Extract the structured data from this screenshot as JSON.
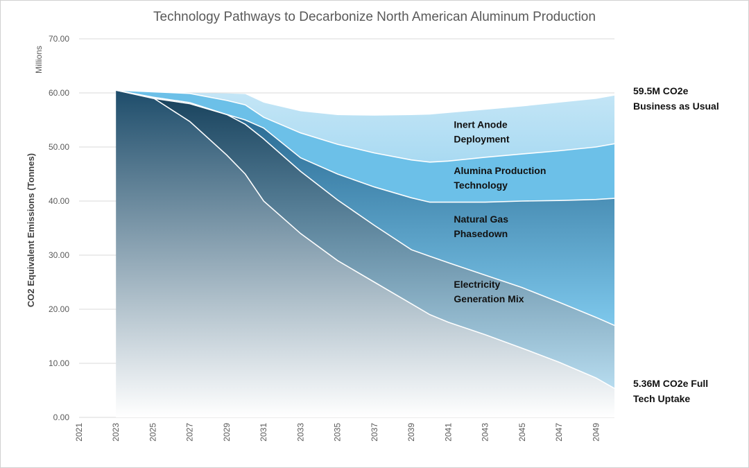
{
  "chart_data": {
    "type": "area",
    "title": "Technology Pathways to Decarbonize North American Aluminum Production",
    "xlabel": "",
    "ylabel": "CO2 Equivalent Emissions  (Tonnes)",
    "y_units": "Millions",
    "ylim": [
      0,
      70
    ],
    "xlim": [
      2021,
      2050
    ],
    "y_ticks": [
      "0.00",
      "10.00",
      "20.00",
      "30.00",
      "40.00",
      "50.00",
      "60.00",
      "70.00"
    ],
    "x_ticks": [
      "2021",
      "2023",
      "2025",
      "2027",
      "2029",
      "2031",
      "2033",
      "2035",
      "2037",
      "2039",
      "2041",
      "2043",
      "2045",
      "2047",
      "2049"
    ],
    "grid": true,
    "x": [
      2023,
      2025,
      2027,
      2029,
      2030,
      2031,
      2033,
      2035,
      2037,
      2039,
      2040,
      2041,
      2043,
      2045,
      2047,
      2049,
      2050
    ],
    "series": [
      {
        "name": "Business as Usual",
        "values": [
          60.5,
          60.3,
          60.0,
          59.9,
          59.8,
          58.2,
          56.6,
          55.9,
          55.8,
          55.9,
          56.0,
          56.3,
          56.9,
          57.5,
          58.2,
          58.9,
          59.5
        ]
      },
      {
        "name": "After Inert Anode Deployment",
        "values": [
          60.5,
          60.2,
          59.9,
          58.6,
          57.8,
          55.5,
          52.6,
          50.5,
          48.9,
          47.6,
          47.2,
          47.4,
          48.1,
          48.7,
          49.3,
          50.0,
          50.6
        ]
      },
      {
        "name": "After Alumina Production Technology",
        "values": [
          60.5,
          59.2,
          58.2,
          56.0,
          55.0,
          53.5,
          48.0,
          45.0,
          42.6,
          40.6,
          39.8,
          39.8,
          39.8,
          40.0,
          40.1,
          40.3,
          40.5
        ]
      },
      {
        "name": "After Natural Gas Phasedown",
        "values": [
          60.5,
          59.0,
          58.0,
          56.0,
          54.2,
          51.5,
          45.5,
          40.2,
          35.5,
          31.0,
          29.8,
          28.6,
          26.3,
          24.0,
          21.3,
          18.5,
          17.0
        ]
      },
      {
        "name": "After Electricity Generation Mix (Full Tech Uptake)",
        "values": [
          60.5,
          59.1,
          54.7,
          48.5,
          45.0,
          40.0,
          34.0,
          29.0,
          25.0,
          21.0,
          19.0,
          17.6,
          15.3,
          12.8,
          10.2,
          7.3,
          5.36
        ]
      }
    ],
    "band_labels": [
      {
        "text": [
          "Inert Anode",
          "Deployment"
        ],
        "at": [
          2041.3,
          53.5
        ]
      },
      {
        "text": [
          "Alumina Production",
          "Technology"
        ],
        "at": [
          2041.3,
          45.0
        ]
      },
      {
        "text": [
          "Natural Gas",
          "Phasedown"
        ],
        "at": [
          2041.3,
          36.0
        ]
      },
      {
        "text": [
          "Electricity",
          "Generation Mix"
        ],
        "at": [
          2041.3,
          24.0
        ]
      }
    ],
    "annotations": [
      {
        "text": [
          "59.5M CO2e",
          "Business as Usual"
        ],
        "value": 59.5
      },
      {
        "text": [
          "5.36M CO2e Full",
          "Tech Uptake"
        ],
        "value": 5.36
      }
    ],
    "colors": {
      "band_top": "#c5e6f6",
      "band_top_low": "#a9daf2",
      "band_anode": "#6cc0e8",
      "band_alumina_top": "#1f5f88",
      "band_alumina_bottom": "#7ec8ec",
      "band_gas_top": "#153f5a",
      "band_gas_bottom": "#b7dcef",
      "band_elec_top": "#1e4d6b",
      "band_elec_bottom": "#ffffff",
      "gridline": "#d9d9d9",
      "separator": "#ffffff"
    }
  }
}
